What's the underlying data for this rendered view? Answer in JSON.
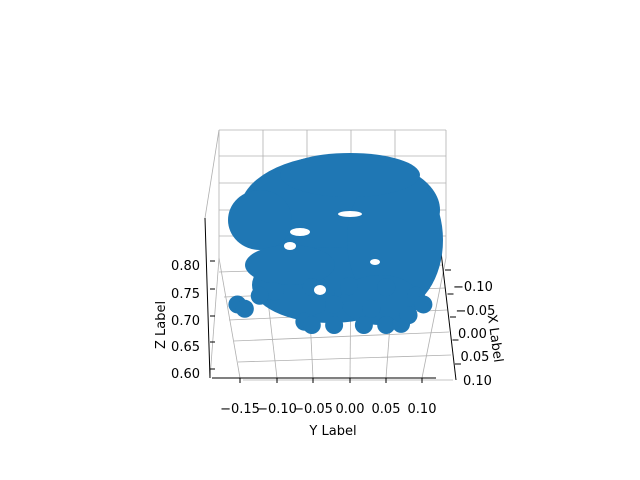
{
  "chart_data": {
    "type": "scatter",
    "projection": "3d",
    "title": "",
    "xlabel": "X Label",
    "ylabel": "Y Label",
    "zlabel": "Z Label",
    "x_ticks": [
      "−0.10",
      "−0.05",
      "0.00",
      "0.05",
      "0.10"
    ],
    "y_ticks": [
      "−0.15",
      "−0.10",
      "−0.05",
      "0.00",
      "0.05",
      "0.10"
    ],
    "z_ticks": [
      "0.60",
      "0.65",
      "0.70",
      "0.75",
      "0.80"
    ],
    "xlim": [
      0.12,
      -0.12
    ],
    "ylim": [
      -0.18,
      0.13
    ],
    "zlim": [
      0.6,
      0.87
    ],
    "grid": true,
    "marker_color": "#1f77b4",
    "series": [
      {
        "points": [
          [
            0.0,
            -0.15,
            0.76
          ],
          [
            0.0,
            -0.1,
            0.82
          ],
          [
            0.0,
            -0.05,
            0.84
          ],
          [
            0.0,
            0.0,
            0.845
          ],
          [
            0.0,
            0.05,
            0.84
          ],
          [
            0.0,
            0.09,
            0.8
          ],
          [
            0.0,
            0.1,
            0.76
          ],
          [
            0.0,
            -0.14,
            0.74
          ],
          [
            0.0,
            -0.06,
            0.68
          ],
          [
            0.0,
            -0.05,
            0.66
          ],
          [
            0.0,
            -0.02,
            0.65
          ],
          [
            0.0,
            0.02,
            0.64
          ],
          [
            0.0,
            0.05,
            0.645
          ],
          [
            0.0,
            0.07,
            0.67
          ],
          [
            0.0,
            0.08,
            0.71
          ],
          [
            0.0,
            -0.02,
            0.76
          ],
          [
            0.0,
            -0.12,
            0.8
          ],
          [
            0.0,
            0.03,
            0.74
          ]
        ]
      }
    ]
  }
}
